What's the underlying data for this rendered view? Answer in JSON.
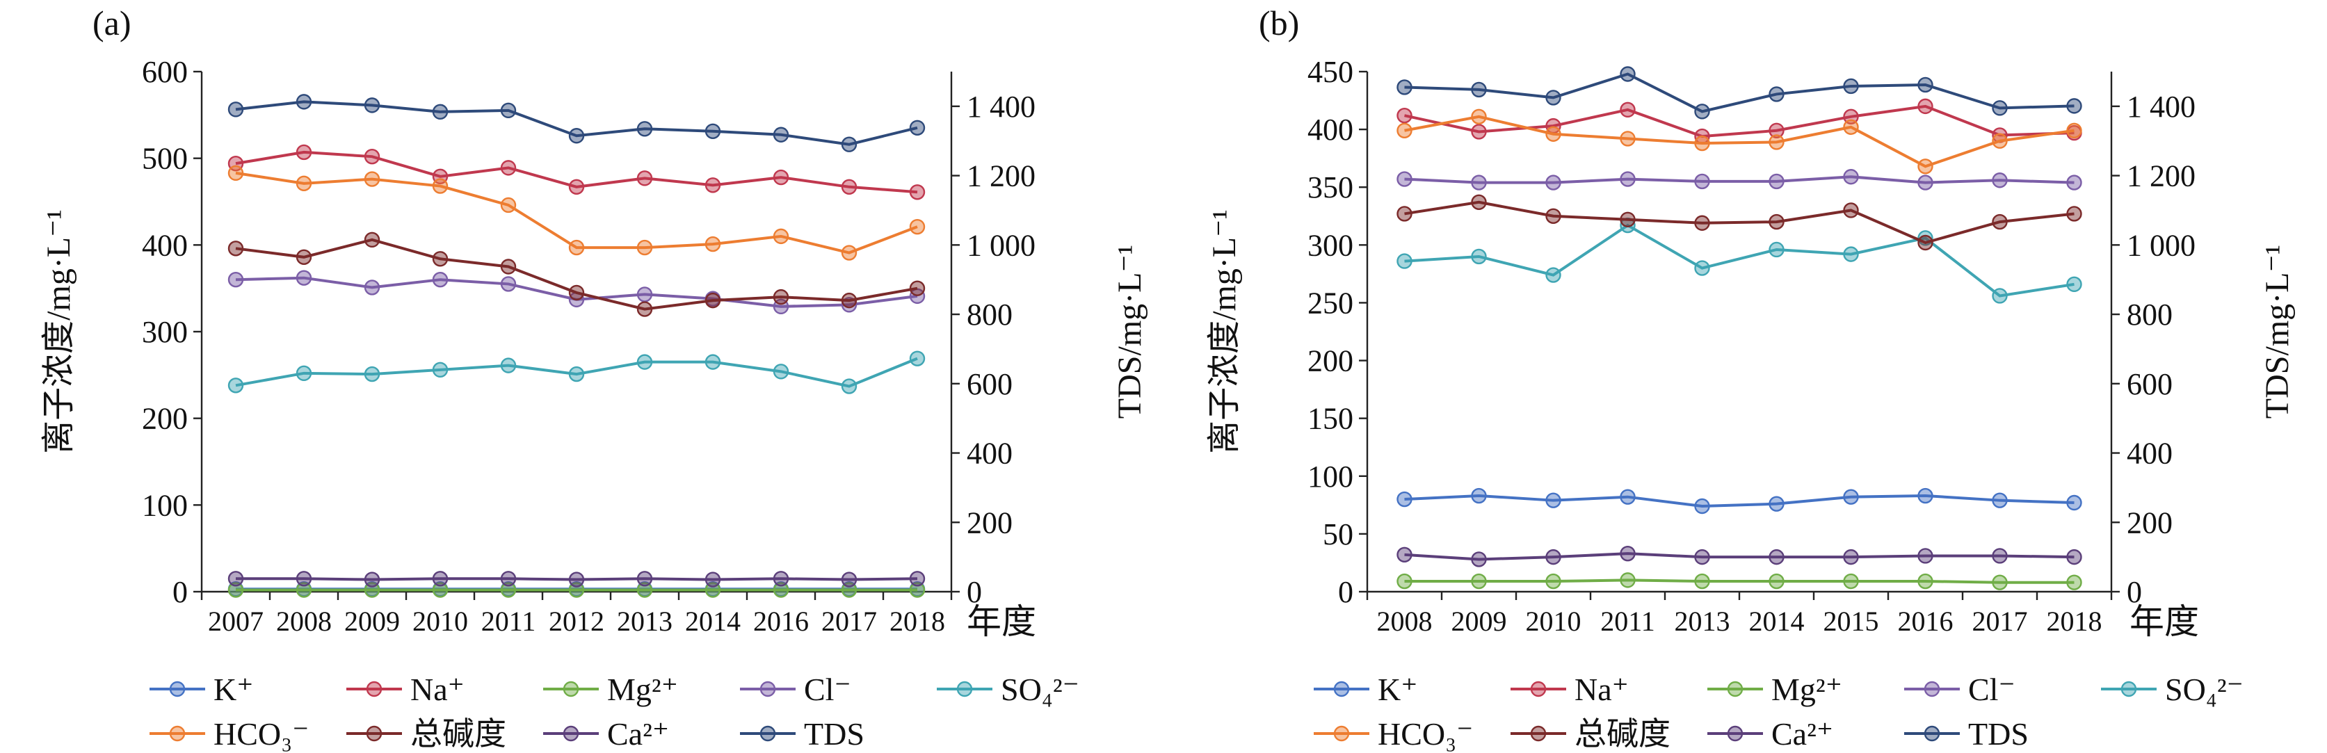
{
  "chart_data": [
    {
      "type": "line",
      "panel_label": "(a)",
      "ylabel": "离子浓度/mg·L⁻¹",
      "y2label": "TDS/mg·L⁻¹",
      "xlabel": "年度",
      "categories": [
        "2007",
        "2008",
        "2009",
        "2010",
        "2011",
        "2012",
        "2013",
        "2014",
        "2016",
        "2017",
        "2018"
      ],
      "ylim": [
        0,
        600
      ],
      "yticks": [
        "0",
        "100",
        "200",
        "300",
        "400",
        "500",
        "600"
      ],
      "y2lim": [
        0,
        1500
      ],
      "y2ticks": [
        "0",
        "200",
        "400",
        "600",
        "800",
        "1 000",
        "1 200",
        "1 400"
      ],
      "series": [
        {
          "name": "K⁺",
          "color": "#4472c4",
          "axis": "left",
          "values": [
            3,
            3,
            3,
            3,
            3,
            3,
            3,
            3,
            3,
            3,
            3
          ]
        },
        {
          "name": "Na⁺",
          "color": "#c0384e",
          "axis": "left",
          "values": [
            494,
            507,
            502,
            479,
            489,
            467,
            477,
            469,
            478,
            467,
            461
          ]
        },
        {
          "name": "Mg²⁺",
          "color": "#70ad47",
          "axis": "left",
          "values": [
            2,
            2,
            2,
            2,
            2,
            2,
            2,
            2,
            2,
            2,
            2
          ]
        },
        {
          "name": "Cl⁻",
          "color": "#7b5ea7",
          "axis": "left",
          "values": [
            360,
            362,
            351,
            360,
            355,
            337,
            343,
            338,
            329,
            331,
            341
          ]
        },
        {
          "name": "SO₄²⁻",
          "color": "#3fa5b3",
          "axis": "left",
          "values": [
            238,
            252,
            251,
            256,
            261,
            251,
            265,
            265,
            254,
            237,
            269
          ]
        },
        {
          "name": "HCO₃⁻",
          "color": "#ed7d31",
          "axis": "left",
          "values": [
            483,
            471,
            476,
            468,
            446,
            397,
            397,
            401,
            410,
            391,
            421
          ]
        },
        {
          "name": "总碱度",
          "color": "#7b2a2a",
          "axis": "left",
          "values": [
            396,
            386,
            406,
            384,
            375,
            345,
            326,
            336,
            340,
            336,
            350
          ]
        },
        {
          "name": "Ca²⁺",
          "color": "#5b3f7a",
          "axis": "left",
          "values": [
            15,
            15,
            14,
            15,
            15,
            14,
            15,
            14,
            15,
            14,
            15
          ]
        },
        {
          "name": "TDS",
          "color": "#2e4a7a",
          "axis": "right",
          "values": [
            1391,
            1413,
            1403,
            1384,
            1388,
            1315,
            1335,
            1328,
            1318,
            1290,
            1338
          ]
        }
      ],
      "legend": {
        "row1": [
          "K⁺",
          "Na⁺",
          "Mg²⁺",
          "Cl⁻",
          "SO₄²⁻"
        ],
        "row2": [
          "HCO₃⁻",
          "总碱度",
          "Ca²⁺",
          "TDS"
        ]
      }
    },
    {
      "type": "line",
      "panel_label": "(b)",
      "ylabel": "离子浓度/mg·L⁻¹",
      "y2label": "TDS/mg·L⁻¹",
      "xlabel": "年度",
      "categories": [
        "2008",
        "2009",
        "2010",
        "2011",
        "2013",
        "2014",
        "2015",
        "2016",
        "2017",
        "2018"
      ],
      "ylim": [
        0,
        450
      ],
      "yticks": [
        "0",
        "50",
        "100",
        "150",
        "200",
        "250",
        "300",
        "350",
        "400",
        "450"
      ],
      "y2lim": [
        0,
        1500
      ],
      "y2ticks": [
        "0",
        "200",
        "400",
        "600",
        "800",
        "1 000",
        "1 200",
        "1 400"
      ],
      "series": [
        {
          "name": "K⁺",
          "color": "#4472c4",
          "axis": "left",
          "values": [
            80,
            83,
            79,
            82,
            74,
            76,
            82,
            83,
            79,
            77
          ]
        },
        {
          "name": "Na⁺",
          "color": "#c0384e",
          "axis": "left",
          "values": [
            412,
            398,
            403,
            417,
            394,
            399,
            411,
            420,
            395,
            397
          ]
        },
        {
          "name": "Mg²⁺",
          "color": "#70ad47",
          "axis": "left",
          "values": [
            9,
            9,
            9,
            10,
            9,
            9,
            9,
            9,
            8,
            8
          ]
        },
        {
          "name": "Cl⁻",
          "color": "#7b5ea7",
          "axis": "left",
          "values": [
            357,
            354,
            354,
            357,
            355,
            355,
            359,
            354,
            356,
            354
          ]
        },
        {
          "name": "SO₄²⁻",
          "color": "#3fa5b3",
          "axis": "left",
          "values": [
            286,
            290,
            274,
            317,
            280,
            296,
            292,
            306,
            256,
            266
          ]
        },
        {
          "name": "HCO₃⁻",
          "color": "#ed7d31",
          "axis": "left",
          "values": [
            399,
            411,
            396,
            392,
            388,
            389,
            402,
            368,
            390,
            399
          ]
        },
        {
          "name": "总碱度",
          "color": "#7b2a2a",
          "axis": "left",
          "values": [
            327,
            337,
            325,
            322,
            319,
            320,
            330,
            302,
            320,
            327
          ]
        },
        {
          "name": "Ca²⁺",
          "color": "#5b3f7a",
          "axis": "left",
          "values": [
            32,
            28,
            30,
            33,
            30,
            30,
            30,
            31,
            31,
            30
          ]
        },
        {
          "name": "TDS",
          "color": "#2e4a7a",
          "axis": "right",
          "values": [
            1455,
            1448,
            1425,
            1493,
            1385,
            1435,
            1458,
            1462,
            1395,
            1401
          ]
        }
      ],
      "legend": {
        "row1": [
          "K⁺",
          "Na⁺",
          "Mg²⁺",
          "Cl⁻",
          "SO₄²⁻"
        ],
        "row2": [
          "HCO₃⁻",
          "总碱度",
          "Ca²⁺",
          "TDS"
        ]
      }
    }
  ]
}
